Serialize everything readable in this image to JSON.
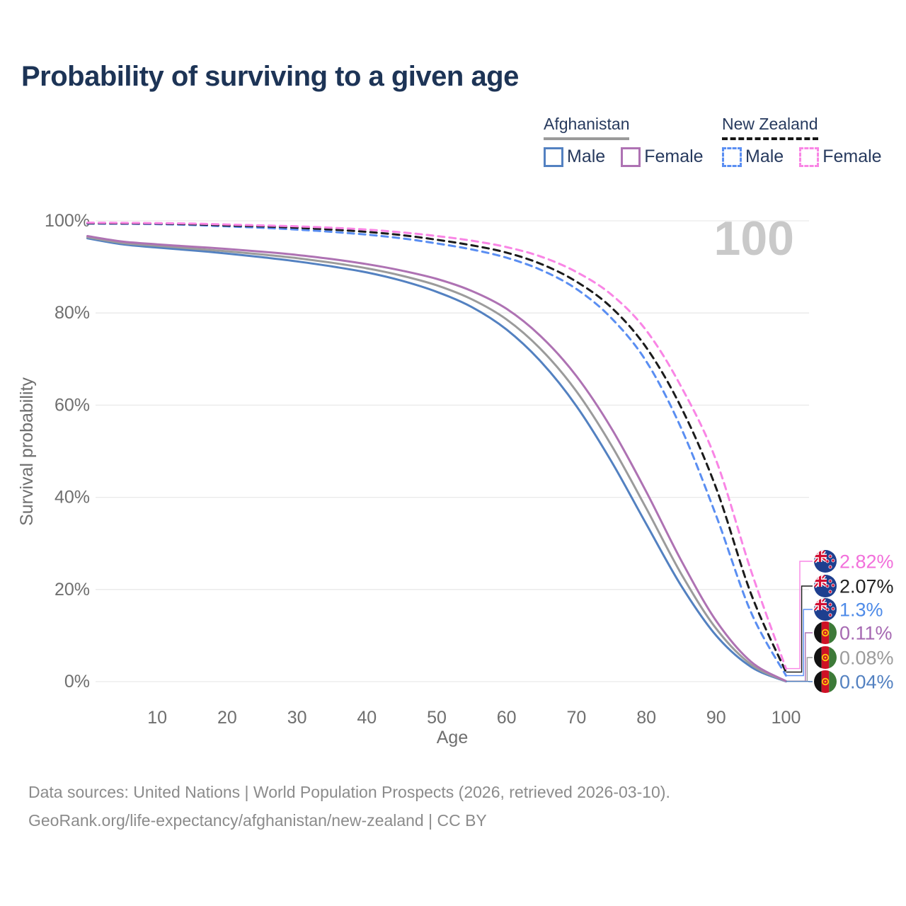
{
  "title": "Probability of surviving to a given age",
  "watermark_age": "100",
  "legend": {
    "groups": [
      {
        "name": "Afghanistan",
        "underline_style": "solid",
        "underline_color": "#9a9a9a",
        "items": [
          {
            "label": "Male",
            "color": "#5381c1",
            "dashed": false
          },
          {
            "label": "Female",
            "color": "#ae72b3",
            "dashed": false
          }
        ]
      },
      {
        "name": "New Zealand",
        "underline_style": "dashed",
        "underline_color": "#161616",
        "items": [
          {
            "label": "Male",
            "color": "#5a8ef2",
            "dashed": true
          },
          {
            "label": "Female",
            "color": "#f985e5",
            "dashed": true
          }
        ]
      }
    ]
  },
  "chart_data": {
    "type": "line",
    "title": "Probability of surviving to a given age",
    "xlabel": "Age",
    "ylabel": "Survival probability",
    "xlim": [
      0,
      100
    ],
    "ylim": [
      0,
      100
    ],
    "grid": "horizontal-only",
    "x_ticks": [
      {
        "value": 10,
        "label": "10"
      },
      {
        "value": 20,
        "label": "20"
      },
      {
        "value": 30,
        "label": "30"
      },
      {
        "value": 40,
        "label": "40"
      },
      {
        "value": 50,
        "label": "50"
      },
      {
        "value": 60,
        "label": "60"
      },
      {
        "value": 70,
        "label": "70"
      },
      {
        "value": 80,
        "label": "80"
      },
      {
        "value": 90,
        "label": "90"
      },
      {
        "value": 100,
        "label": "100"
      }
    ],
    "y_ticks": [
      {
        "value": 0,
        "label": "0%"
      },
      {
        "value": 20,
        "label": "20%"
      },
      {
        "value": 40,
        "label": "40%"
      },
      {
        "value": 60,
        "label": "60%"
      },
      {
        "value": 80,
        "label": "80%"
      },
      {
        "value": 100,
        "label": "100%"
      }
    ],
    "x": [
      0,
      5,
      10,
      15,
      20,
      25,
      30,
      35,
      40,
      45,
      50,
      55,
      60,
      65,
      70,
      75,
      80,
      85,
      90,
      95,
      100
    ],
    "series": [
      {
        "name": "Afghanistan Male",
        "country": "Afghanistan",
        "sex": "Male",
        "flag": "af",
        "dashed": false,
        "color": "#5381c1",
        "label_color": "#5381c1",
        "end_label": "0.04%",
        "values": [
          96.2,
          94.9,
          94.2,
          93.6,
          92.9,
          92.1,
          91.2,
          90.1,
          88.8,
          87.0,
          84.6,
          81.3,
          76.4,
          69.3,
          59.8,
          47.8,
          34.2,
          20.8,
          10.0,
          3.2,
          0.04
        ]
      },
      {
        "name": "Afghanistan (both sexes)",
        "country": "Afghanistan",
        "sex": "Both",
        "flag": "af",
        "dashed": false,
        "color": "#9b9b9b",
        "label_color": "#9b9b9b",
        "end_label": "0.08%",
        "values": [
          96.45,
          95.2,
          94.6,
          94.0,
          93.4,
          92.7,
          91.9,
          90.9,
          89.7,
          88.1,
          86.0,
          83.0,
          78.6,
          72.0,
          63.0,
          51.3,
          37.6,
          23.4,
          11.5,
          3.7,
          0.08
        ]
      },
      {
        "name": "Afghanistan Female",
        "country": "Afghanistan",
        "sex": "Female",
        "flag": "af",
        "dashed": false,
        "color": "#ae72b3",
        "label_color": "#a669b2",
        "end_label": "0.11%",
        "values": [
          96.7,
          95.5,
          94.9,
          94.4,
          93.9,
          93.3,
          92.6,
          91.7,
          90.6,
          89.2,
          87.4,
          84.8,
          80.9,
          74.8,
          66.3,
          55.0,
          41.2,
          26.3,
          13.2,
          4.3,
          0.11
        ]
      },
      {
        "name": "New Zealand Male",
        "country": "New Zealand",
        "sex": "Male",
        "flag": "nz",
        "dashed": true,
        "color": "#5a8ef2",
        "label_color": "#4e8be8",
        "end_label": "1.3%",
        "values": [
          99.4,
          99.35,
          99.3,
          99.1,
          98.8,
          98.5,
          98.1,
          97.6,
          97.0,
          96.2,
          95.1,
          93.8,
          92.0,
          89.3,
          85.2,
          78.9,
          69.5,
          55.0,
          36.0,
          15.0,
          1.3
        ]
      },
      {
        "name": "New Zealand (both sexes)",
        "country": "New Zealand",
        "sex": "Both",
        "flag": "nz",
        "dashed": true,
        "color": "#1b1b1b",
        "label_color": "#222222",
        "end_label": "2.07%",
        "values": [
          99.5,
          99.45,
          99.4,
          99.25,
          99.0,
          98.8,
          98.5,
          98.1,
          97.6,
          96.9,
          95.9,
          94.7,
          93.1,
          90.6,
          86.8,
          81.2,
          72.5,
          59.5,
          42.0,
          19.0,
          2.07
        ]
      },
      {
        "name": "New Zealand Female",
        "country": "New Zealand",
        "sex": "Female",
        "flag": "nz",
        "dashed": true,
        "color": "#f985e5",
        "label_color": "#f270db",
        "end_label": "2.82%",
        "values": [
          99.6,
          99.55,
          99.5,
          99.4,
          99.2,
          99.0,
          98.8,
          98.5,
          98.1,
          97.5,
          96.7,
          95.7,
          94.3,
          92.2,
          88.9,
          84.0,
          76.2,
          64.0,
          48.0,
          24.0,
          2.82
        ]
      }
    ]
  },
  "footer": {
    "line1": "Data sources: United Nations | World Population Prospects (2026, retrieved 2026-03-10).",
    "line2": "GeoRank.org/life-expectancy/afghanistan/new-zealand | CC BY"
  }
}
